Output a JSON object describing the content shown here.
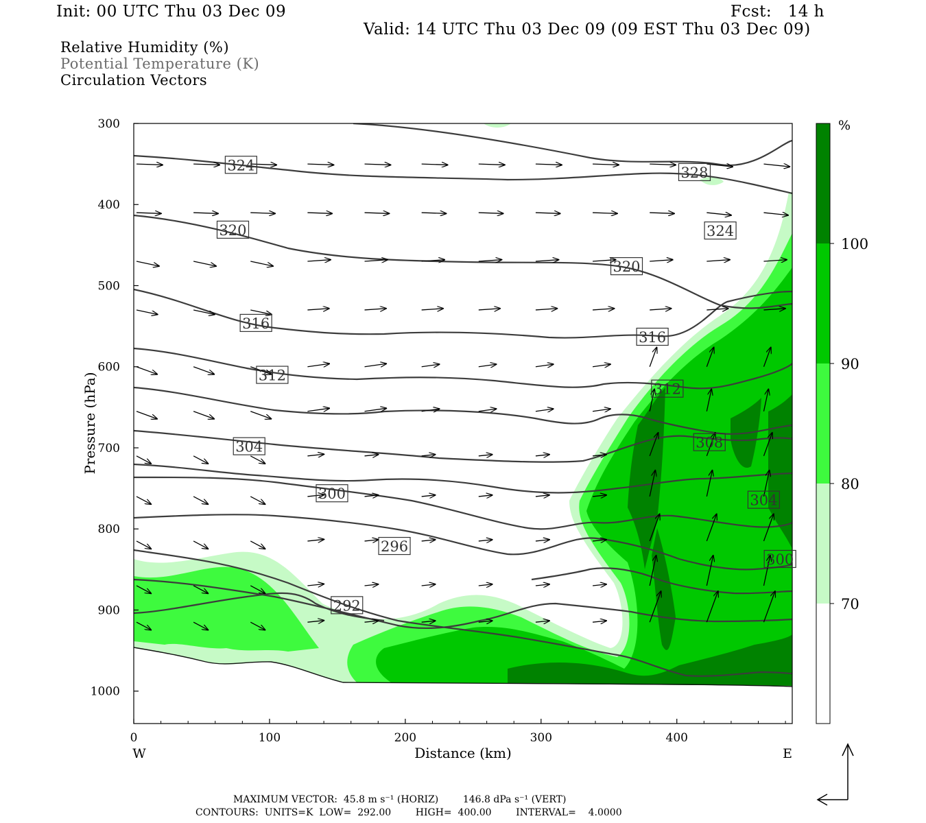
{
  "header": {
    "init": "Init: 00 UTC Thu 03 Dec 09",
    "fcst": "Fcst:   14 h",
    "valid": "Valid: 14 UTC Thu 03 Dec 09 (09 EST Thu 03 Dec 09)"
  },
  "legend": {
    "line1": "Relative Humidity (%)",
    "line2": "Potential Temperature (K)",
    "line3": "Circulation Vectors"
  },
  "footer": {
    "line1": "MAXIMUM VECTOR:  45.8 m s⁻¹ (HORIZ)        146.8 dPa s⁻¹ (VERT)",
    "line2": "CONTOURS:  UNITS=K  LOW=  292.00        HIGH=  400.00        INTERVAL=    4.0000"
  },
  "colors": {
    "rh70": "#c6fac6",
    "rh80": "#3efa3e",
    "rh90": "#00c800",
    "rh100": "#008200",
    "contour": "#3c3c3c"
  },
  "chart_data": {
    "type": "cross-section",
    "xlabel": "Distance (km)",
    "ylabel": "Pressure (hPa)",
    "xlim": [
      0,
      485
    ],
    "ylim": [
      1040,
      300
    ],
    "x_ticks": [
      0,
      100,
      200,
      300,
      400
    ],
    "y_ticks": [
      300,
      400,
      500,
      600,
      700,
      800,
      900,
      1000
    ],
    "x_end_labels": {
      "left": "W",
      "right": "E"
    },
    "colorbar": {
      "unit": "%",
      "levels": [
        70,
        80,
        90,
        100
      ],
      "colors": [
        "#ffffff",
        "#c6fac6",
        "#3efa3e",
        "#00c800",
        "#008200"
      ]
    },
    "theta_contour_labels": [
      {
        "value": "324",
        "x": 79,
        "p": 351
      },
      {
        "value": "328",
        "x": 413,
        "p": 360
      },
      {
        "value": "320",
        "x": 73,
        "p": 431
      },
      {
        "value": "324",
        "x": 432,
        "p": 432
      },
      {
        "value": "320",
        "x": 363,
        "p": 476
      },
      {
        "value": "316",
        "x": 90,
        "p": 546
      },
      {
        "value": "316",
        "x": 382,
        "p": 563
      },
      {
        "value": "312",
        "x": 102,
        "p": 610
      },
      {
        "value": "312",
        "x": 393,
        "p": 627
      },
      {
        "value": "304",
        "x": 85,
        "p": 698
      },
      {
        "value": "308",
        "x": 424,
        "p": 693
      },
      {
        "value": "300",
        "x": 146,
        "p": 756
      },
      {
        "value": "304",
        "x": 464,
        "p": 764
      },
      {
        "value": "296",
        "x": 192,
        "p": 821
      },
      {
        "value": "300",
        "x": 476,
        "p": 837
      },
      {
        "value": "292",
        "x": 157,
        "p": 894
      }
    ]
  }
}
